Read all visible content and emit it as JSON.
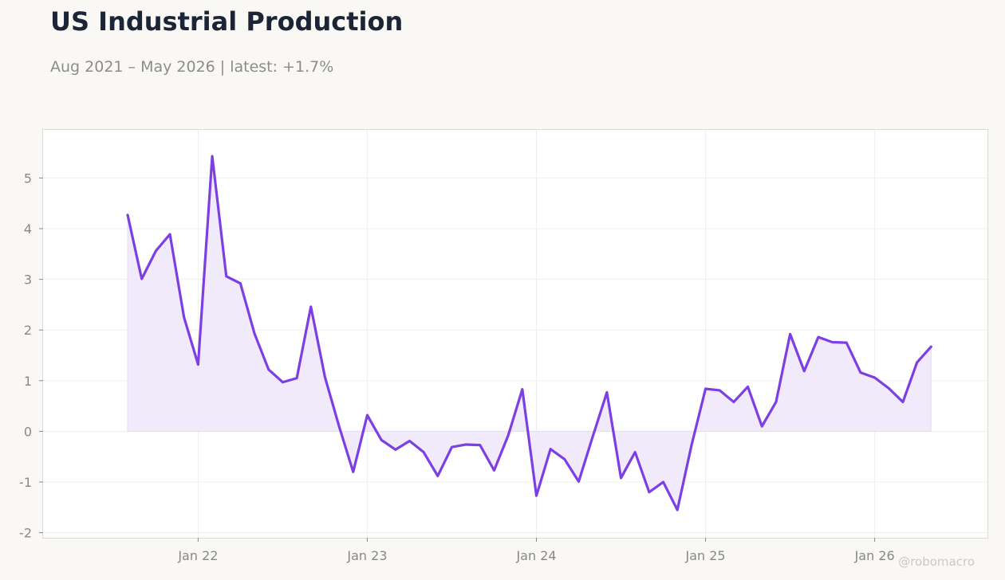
{
  "title": "US Industrial Production",
  "subtitle": "Aug 2021 – May 2026 | latest: +1.7%",
  "watermark": "@robomacro",
  "colors": {
    "line": "#7b3fe4",
    "fill": "#efe8fb",
    "background": "#f9f8f5",
    "plot_background": "#ffffff",
    "grid": "#efefef",
    "title": "#1b2536",
    "subtitle": "#8c8c8c"
  },
  "chart_data": {
    "type": "area",
    "title": "US Industrial Production",
    "subtitle": "Aug 2021 – May 2026 | latest: +1.7%",
    "xlabel": "",
    "ylabel": "",
    "x_start": "2021-08",
    "x_end": "2026-05",
    "x": [
      "2021-08",
      "2021-09",
      "2021-10",
      "2021-11",
      "2021-12",
      "2022-01",
      "2022-02",
      "2022-03",
      "2022-04",
      "2022-05",
      "2022-06",
      "2022-07",
      "2022-08",
      "2022-09",
      "2022-10",
      "2022-11",
      "2022-12",
      "2023-01",
      "2023-02",
      "2023-03",
      "2023-04",
      "2023-05",
      "2023-06",
      "2023-07",
      "2023-08",
      "2023-09",
      "2023-10",
      "2023-11",
      "2023-12",
      "2024-01",
      "2024-02",
      "2024-03",
      "2024-04",
      "2024-05",
      "2024-06",
      "2024-07",
      "2024-08",
      "2024-09",
      "2024-10",
      "2024-11",
      "2024-12",
      "2025-01",
      "2025-02",
      "2025-03",
      "2025-04",
      "2025-05",
      "2025-06",
      "2025-07",
      "2025-08",
      "2025-09",
      "2025-10",
      "2025-11",
      "2025-12",
      "2026-01",
      "2026-02",
      "2026-03",
      "2026-04",
      "2026-05"
    ],
    "values": [
      4.27,
      3.01,
      3.56,
      3.89,
      2.25,
      1.32,
      5.43,
      3.06,
      2.92,
      1.93,
      1.22,
      0.97,
      1.05,
      2.46,
      1.07,
      0.1,
      -0.8,
      0.32,
      -0.17,
      -0.36,
      -0.19,
      -0.41,
      -0.88,
      -0.31,
      -0.26,
      -0.27,
      -0.77,
      -0.08,
      0.83,
      -1.27,
      -0.35,
      -0.55,
      -0.99,
      -0.1,
      0.77,
      -0.92,
      -0.41,
      -1.2,
      -1.0,
      -1.55,
      -0.28,
      0.84,
      0.81,
      0.58,
      0.88,
      0.1,
      0.58,
      1.92,
      1.19,
      1.86,
      1.76,
      1.75,
      1.16,
      1.06,
      0.85,
      0.58,
      1.36,
      1.67
    ],
    "x_ticks": [
      "Jan 22",
      "Jan 23",
      "Jan 24",
      "Jan 25",
      "Jan 26"
    ],
    "x_tick_dates": [
      "2022-01",
      "2023-01",
      "2024-01",
      "2025-01",
      "2026-01"
    ],
    "y_ticks": [
      "-2",
      "-1",
      "0",
      "1",
      "2",
      "3",
      "4",
      "5"
    ],
    "y_tick_values": [
      -2,
      -1,
      0,
      1,
      2,
      3,
      4,
      5
    ],
    "ylim": [
      -2.1,
      5.95
    ],
    "xlim": [
      "2021-02",
      "2026-09"
    ],
    "grid": true,
    "legend": "none",
    "fill_baseline": 0
  }
}
